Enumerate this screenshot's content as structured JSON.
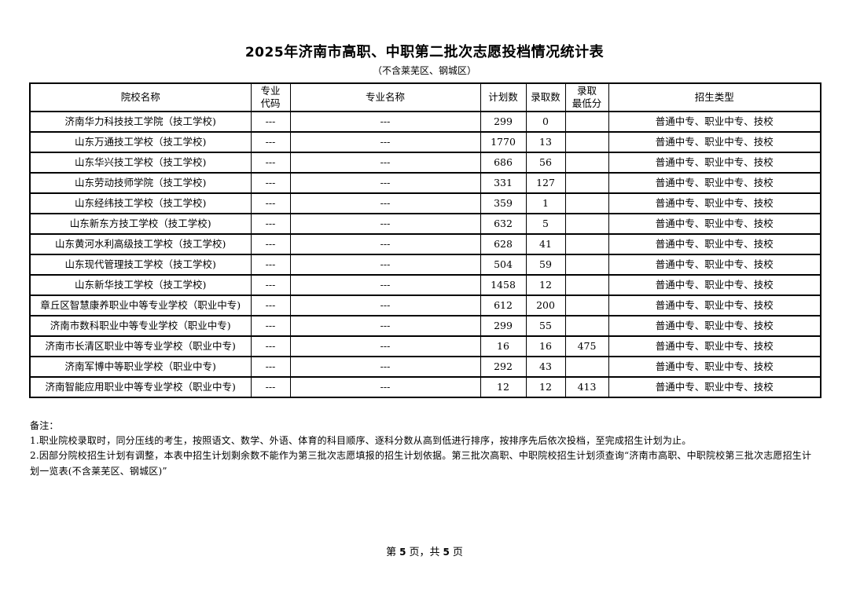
{
  "document": {
    "title_year": "2025",
    "title_text": "年济南市高职、中职第二批次志愿投档情况统计表",
    "subtitle": "（不含莱芜区、钢城区）"
  },
  "table": {
    "headers": [
      "院校名称",
      "专业\n代码",
      "专业名称",
      "计划数",
      "录取数",
      "录取\n最低分",
      "招生类型"
    ],
    "rows": [
      {
        "school": "济南华力科技技工学院（技工学校)",
        "code": "---",
        "major": "---",
        "plan": "299",
        "admitted": "0",
        "min_score": "",
        "type": "普通中专、职业中专、技校"
      },
      {
        "school": "山东万通技工学校（技工学校)",
        "code": "---",
        "major": "---",
        "plan": "1770",
        "admitted": "13",
        "min_score": "",
        "type": "普通中专、职业中专、技校"
      },
      {
        "school": "山东华兴技工学校（技工学校)",
        "code": "---",
        "major": "---",
        "plan": "686",
        "admitted": "56",
        "min_score": "",
        "type": "普通中专、职业中专、技校"
      },
      {
        "school": "山东劳动技师学院（技工学校)",
        "code": "---",
        "major": "---",
        "plan": "331",
        "admitted": "127",
        "min_score": "",
        "type": "普通中专、职业中专、技校"
      },
      {
        "school": "山东经纬技工学校（技工学校)",
        "code": "---",
        "major": "---",
        "plan": "359",
        "admitted": "1",
        "min_score": "",
        "type": "普通中专、职业中专、技校"
      },
      {
        "school": "山东新东方技工学校（技工学校)",
        "code": "---",
        "major": "---",
        "plan": "632",
        "admitted": "5",
        "min_score": "",
        "type": "普通中专、职业中专、技校"
      },
      {
        "school": "山东黄河水利高级技工学校（技工学校)",
        "code": "---",
        "major": "---",
        "plan": "628",
        "admitted": "41",
        "min_score": "",
        "type": "普通中专、职业中专、技校"
      },
      {
        "school": "山东现代管理技工学校（技工学校)",
        "code": "---",
        "major": "---",
        "plan": "504",
        "admitted": "59",
        "min_score": "",
        "type": "普通中专、职业中专、技校"
      },
      {
        "school": "山东新华技工学校（技工学校)",
        "code": "---",
        "major": "---",
        "plan": "1458",
        "admitted": "12",
        "min_score": "",
        "type": "普通中专、职业中专、技校"
      },
      {
        "school": "章丘区智慧康养职业中等专业学校（职业中专)",
        "code": "---",
        "major": "---",
        "plan": "612",
        "admitted": "200",
        "min_score": "",
        "type": "普通中专、职业中专、技校"
      },
      {
        "school": "济南市数科职业中等专业学校（职业中专)",
        "code": "---",
        "major": "---",
        "plan": "299",
        "admitted": "55",
        "min_score": "",
        "type": "普通中专、职业中专、技校"
      },
      {
        "school": "济南市长清区职业中等专业学校（职业中专)",
        "code": "---",
        "major": "---",
        "plan": "16",
        "admitted": "16",
        "min_score": "475",
        "type": "普通中专、职业中专、技校"
      },
      {
        "school": "济南军博中等职业学校（职业中专)",
        "code": "---",
        "major": "---",
        "plan": "292",
        "admitted": "43",
        "min_score": "",
        "type": "普通中专、职业中专、技校"
      },
      {
        "school": "济南智能应用职业中等专业学校（职业中专)",
        "code": "---",
        "major": "---",
        "plan": "12",
        "admitted": "12",
        "min_score": "413",
        "type": "普通中专、职业中专、技校"
      }
    ]
  },
  "notes": {
    "label": "备注：",
    "items": [
      "1.职业院校录取时，同分压线的考生，按照语文、数学、外语、体育的科目顺序、逐科分数从高到低进行排序，按排序先后依次投档，至完成招生计划为止。",
      "2.因部分院校招生计划有调整，本表中招生计划剩余数不能作为第三批次志愿填报的招生计划依据。第三批次高职、中职院校招生计划须查询“济南市高职、中职院校第三批次志愿招生计划一览表(不含莱芜区、钢城区)”"
    ]
  },
  "footer": {
    "prefix": "第",
    "page_number": "5",
    "middle": "页，共",
    "total_pages": "5",
    "suffix": "页"
  }
}
